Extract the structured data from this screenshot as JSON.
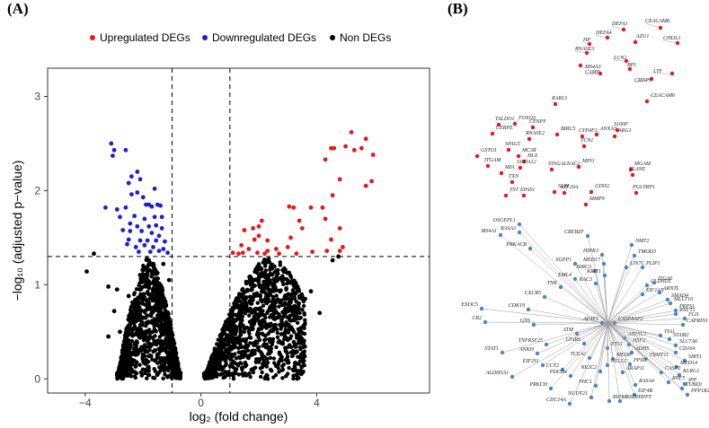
{
  "panels": {
    "a_label": "(A)",
    "b_label": "(B)"
  },
  "chart_data": {
    "type": "scatter",
    "title": "",
    "xlabel": "log₂ (fold change)",
    "ylabel": "−log₁₀ (adjusted p−value)",
    "xlim": [
      -5.3,
      7.9
    ],
    "ylim": [
      -0.15,
      3.3
    ],
    "xticks": [
      -4,
      0,
      4
    ],
    "xtick_labels": [
      "−4",
      "0",
      "4"
    ],
    "yticks": [
      0,
      1,
      2,
      3
    ],
    "ytick_labels": [
      "0",
      "1",
      "2",
      "3"
    ],
    "grid": false,
    "legend": "top",
    "thresholds": {
      "log2fc": [
        -1,
        1
      ],
      "neglog10_padj": 1.3
    },
    "colors": {
      "up": "#e31a1c",
      "down": "#1f1fd0",
      "non": "#000000"
    },
    "series": [
      {
        "name": "Upregulated DEGs",
        "color": "#e31a1c",
        "points": [
          [
            5.2,
            2.62
          ],
          [
            5.7,
            2.55
          ],
          [
            5.0,
            2.47
          ],
          [
            5.55,
            2.45
          ],
          [
            4.5,
            2.45
          ],
          [
            4.6,
            2.45
          ],
          [
            5.3,
            2.43
          ],
          [
            5.95,
            2.38
          ],
          [
            4.3,
            2.33
          ],
          [
            5.9,
            2.1
          ],
          [
            4.8,
            2.12
          ],
          [
            5.7,
            2.05
          ],
          [
            4.55,
            1.95
          ],
          [
            4.2,
            1.82
          ],
          [
            3.8,
            1.82
          ],
          [
            4.3,
            1.7
          ],
          [
            3.2,
            1.82
          ],
          [
            3.05,
            1.83
          ],
          [
            3.4,
            1.68
          ],
          [
            3.5,
            1.6
          ],
          [
            4.8,
            1.6
          ],
          [
            2.1,
            1.68
          ],
          [
            2.0,
            1.62
          ],
          [
            1.8,
            1.6
          ],
          [
            1.5,
            1.58
          ],
          [
            2.0,
            1.52
          ],
          [
            1.85,
            1.48
          ],
          [
            2.3,
            1.47
          ],
          [
            3.1,
            1.5
          ],
          [
            4.5,
            1.48
          ],
          [
            4.9,
            1.4
          ],
          [
            4.8,
            1.36
          ],
          [
            3.0,
            1.4
          ],
          [
            1.4,
            1.42
          ],
          [
            1.65,
            1.38
          ],
          [
            1.3,
            1.33
          ],
          [
            1.1,
            1.34
          ],
          [
            1.45,
            1.34
          ],
          [
            2.2,
            1.33
          ],
          [
            2.7,
            1.33
          ],
          [
            3.3,
            1.33
          ],
          [
            3.85,
            1.35
          ],
          [
            4.35,
            1.36
          ],
          [
            2.3,
            1.36
          ],
          [
            1.95,
            1.34
          ],
          [
            2.6,
            1.38
          ]
        ]
      },
      {
        "name": "Downregulated DEGs",
        "color": "#1f1fd0",
        "points": [
          [
            -3.1,
            2.5
          ],
          [
            -3.0,
            2.43
          ],
          [
            -2.6,
            2.43
          ],
          [
            -3.05,
            2.37
          ],
          [
            -2.2,
            2.2
          ],
          [
            -2.4,
            2.15
          ],
          [
            -2.1,
            2.12
          ],
          [
            -2.5,
            2.08
          ],
          [
            -1.6,
            2.02
          ],
          [
            -2.2,
            1.98
          ],
          [
            -2.4,
            1.96
          ],
          [
            -2.0,
            1.93
          ],
          [
            -1.9,
            1.85
          ],
          [
            -1.8,
            1.85
          ],
          [
            -1.5,
            1.85
          ],
          [
            -1.4,
            1.84
          ],
          [
            -1.7,
            1.83
          ],
          [
            -2.6,
            1.82
          ],
          [
            -3.3,
            1.82
          ],
          [
            -2.9,
            1.8
          ],
          [
            -2.8,
            1.72
          ],
          [
            -2.3,
            1.73
          ],
          [
            -1.95,
            1.7
          ],
          [
            -1.6,
            1.72
          ],
          [
            -1.35,
            1.72
          ],
          [
            -2.45,
            1.65
          ],
          [
            -2.2,
            1.62
          ],
          [
            -1.8,
            1.62
          ],
          [
            -1.55,
            1.63
          ],
          [
            -1.35,
            1.6
          ],
          [
            -2.7,
            1.58
          ],
          [
            -2.45,
            1.57
          ],
          [
            -2.05,
            1.57
          ],
          [
            -1.7,
            1.55
          ],
          [
            -1.45,
            1.52
          ],
          [
            -2.5,
            1.48
          ],
          [
            -2.1,
            1.47
          ],
          [
            -1.85,
            1.47
          ],
          [
            -1.55,
            1.47
          ],
          [
            -1.25,
            1.46
          ],
          [
            -2.55,
            1.43
          ],
          [
            -2.25,
            1.4
          ],
          [
            -1.95,
            1.42
          ],
          [
            -1.65,
            1.4
          ],
          [
            -1.3,
            1.38
          ],
          [
            -2.15,
            1.35
          ],
          [
            -1.75,
            1.35
          ],
          [
            -1.45,
            1.36
          ],
          [
            -1.15,
            1.34
          ]
        ]
      },
      {
        "name": "Non DEGs",
        "color": "#000000",
        "points": [
          [
            -3.95,
            1.14
          ],
          [
            -3.7,
            1.33
          ],
          [
            -3.2,
            0.98
          ],
          [
            -2.9,
            0.95
          ],
          [
            -2.5,
            0.88
          ],
          [
            -3.0,
            0.72
          ],
          [
            -2.3,
            0.68
          ],
          [
            -2.8,
            0.5
          ],
          [
            -3.2,
            0.45
          ],
          [
            -2.6,
            0.39
          ],
          [
            -2.1,
            0.3
          ],
          [
            -2.4,
            0.1
          ],
          [
            -1.8,
            1.0
          ],
          [
            -1.6,
            1.17
          ],
          [
            -1.3,
            1.22
          ],
          [
            -1.1,
            1.05
          ],
          [
            3.1,
            1.02
          ],
          [
            3.6,
            0.85
          ],
          [
            3.8,
            0.93
          ],
          [
            4.1,
            0.7
          ],
          [
            3.2,
            0.72
          ],
          [
            2.9,
            0.45
          ],
          [
            3.5,
            0.55
          ],
          [
            2.6,
            1.15
          ],
          [
            2.3,
            1.1
          ],
          [
            2.1,
            0.22
          ],
          [
            2.5,
            0.85
          ],
          [
            4.55,
            1.26
          ],
          [
            4.75,
            1.3
          ]
        ]
      }
    ],
    "non_deg_cloud": [
      {
        "x_min": -2.9,
        "x_max": -0.7,
        "y_max_at_edge": 1.3,
        "x_edge": -1.8,
        "count": 1100
      },
      {
        "x_min": 0.1,
        "x_max": 3.6,
        "y_max_at_edge": 1.3,
        "x_edge": 2.4,
        "count": 1200
      }
    ]
  },
  "network": {
    "color": "#e31a1c",
    "clusters": [
      {
        "name": "cluster-1",
        "node_color": "#e31a1c",
        "nodes": [
          [
            "DEFA1",
            694,
            33
          ],
          [
            "CEACAM8",
            735,
            31
          ],
          [
            "DEFA4",
            676,
            42
          ],
          [
            "HP",
            656,
            49
          ],
          [
            "AZU1",
            707,
            47
          ],
          [
            "CHI3L1",
            754,
            48
          ],
          [
            "RNASE3",
            653,
            59
          ],
          [
            "LCN2",
            697,
            68
          ],
          [
            "MS4A3",
            646,
            73
          ],
          [
            "CAMP",
            668,
            82
          ],
          [
            "BPI",
            701,
            77
          ],
          [
            "LTF",
            748,
            82
          ],
          [
            "CRISP3",
            725,
            88
          ]
        ],
        "label_positions": [
          [
            681,
            28
          ],
          [
            718,
            25
          ],
          [
            663,
            38
          ],
          [
            649,
            46
          ],
          [
            708,
            42
          ],
          [
            738,
            44
          ],
          [
            640,
            56
          ],
          [
            683,
            66
          ],
          [
            651,
            76
          ],
          [
            651,
            82
          ],
          [
            698,
            74
          ],
          [
            727,
            81
          ],
          [
            706,
            91
          ]
        ]
      },
      {
        "name": "cluster-2",
        "node_color": "#e31a1c",
        "nodes": [
          [
            "RAB13",
            618,
            116
          ],
          [
            "CEACAM6",
            720,
            113
          ],
          [
            "TALDO1",
            555,
            139
          ],
          [
            "FOXO3",
            573,
            138
          ],
          [
            "CENPF",
            593,
            142
          ],
          [
            "CEBPE",
            548,
            149
          ],
          [
            "RNASE2",
            589,
            155
          ],
          [
            "BIRC5",
            620,
            150
          ],
          [
            "CYP4F3",
            648,
            152
          ],
          [
            "ANXA3",
            664,
            150
          ],
          [
            "S100P",
            687,
            145
          ],
          [
            "ARG1",
            684,
            152
          ],
          [
            "SPAG5",
            566,
            167
          ],
          [
            "MC3R",
            577,
            174
          ],
          [
            "TCN1",
            650,
            163
          ],
          [
            "GSTO1",
            531,
            174
          ],
          [
            "ITGAM",
            543,
            185
          ],
          [
            "HLX",
            583,
            180
          ],
          [
            "ST6GALNAC2",
            614,
            189
          ],
          [
            "MPO",
            644,
            186
          ],
          [
            "S100A12",
            579,
            187
          ],
          [
            "MIA",
            558,
            193
          ],
          [
            "TXN",
            570,
            203
          ],
          [
            "MGAM",
            702,
            189
          ],
          [
            "ELANE",
            704,
            195
          ],
          [
            "TST",
            563,
            218
          ],
          [
            "EPAS1",
            583,
            218
          ],
          [
            "SLPI",
            617,
            214
          ],
          [
            "KIF20A",
            628,
            215
          ],
          [
            "GINS2",
            658,
            214
          ],
          [
            "PGLYRP1",
            708,
            215
          ],
          [
            "MMP9",
            652,
            228
          ]
        ]
      },
      {
        "name": "cluster-3",
        "node_color": "#4a86c8",
        "nodes": [
          [
            "OSGEPL1",
            578,
            250
          ],
          [
            "MS4A1",
            557,
            262
          ],
          [
            "RASA3",
            578,
            259
          ],
          [
            "PRKACB",
            590,
            277
          ],
          [
            "CREBZF",
            654,
            263
          ],
          [
            "NMT2",
            703,
            273
          ],
          [
            "HIPK3",
            670,
            284
          ],
          [
            "MED17",
            672,
            294
          ],
          [
            "TMOD3",
            706,
            285
          ],
          [
            "SGPP1",
            640,
            294
          ],
          [
            "BIRC3",
            662,
            302
          ],
          [
            "KRIT1",
            673,
            307
          ],
          [
            "LIN7C",
            697,
            298
          ],
          [
            "PLIP1",
            715,
            298
          ],
          [
            "EML4",
            640,
            311
          ],
          [
            "RAC3",
            663,
            316
          ],
          [
            "CLDND1",
            720,
            318
          ],
          [
            "ITGA6",
            728,
            315
          ],
          [
            "TNK",
            624,
            320
          ],
          [
            "CXCR5",
            606,
            331
          ],
          [
            "EIF1AX",
            715,
            328
          ],
          [
            "ARNTL",
            734,
            326
          ],
          [
            "SMAD4",
            743,
            334
          ],
          [
            "CDK19",
            588,
            345
          ],
          [
            "EXOC5",
            536,
            344
          ],
          [
            "MLLT10",
            746,
            338
          ],
          [
            "PRPS1",
            752,
            346
          ],
          [
            "CR2",
            540,
            359
          ],
          [
            "GNS",
            594,
            362
          ],
          [
            "AP4E1",
            670,
            360
          ],
          [
            "CASP8AP2",
            684,
            360
          ],
          [
            "FLI1",
            762,
            355
          ],
          [
            "RNFT1",
            752,
            350
          ],
          [
            "CAPRIN1",
            760,
            362
          ],
          [
            "ATM",
            642,
            372
          ],
          [
            "TIA1",
            735,
            374
          ],
          [
            "STAM2",
            745,
            378
          ],
          [
            "ATP5C1",
            695,
            377
          ],
          [
            "LPAR6",
            650,
            383
          ],
          [
            "SLC7A6",
            752,
            385
          ],
          [
            "CD164",
            752,
            393
          ],
          [
            "TNFRSF25",
            608,
            384
          ],
          [
            "HSF2",
            700,
            384
          ],
          [
            "ETS1",
            676,
            388
          ],
          [
            "ADH5",
            703,
            393
          ],
          [
            "STAT1",
            559,
            393
          ],
          [
            "ANKH",
            598,
            394
          ],
          [
            "TCEA2",
            656,
            399
          ],
          [
            "MED6",
            682,
            400
          ],
          [
            "TRMT11",
            719,
            400
          ],
          [
            "SIRT1",
            762,
            402
          ],
          [
            "EIF2S1",
            604,
            407
          ],
          [
            "NELL2",
            676,
            407
          ],
          [
            "PPID",
            701,
            406
          ],
          [
            "MED14",
            753,
            409
          ],
          [
            "CCT2",
            626,
            412
          ],
          [
            "NR2C2",
            668,
            414
          ],
          [
            "ARAP11",
            693,
            415
          ],
          [
            "CASP2",
            736,
            415
          ],
          [
            "KLRG1",
            756,
            418
          ],
          [
            "ALDH5A1",
            570,
            420
          ],
          [
            "PDCD4",
            635,
            419
          ],
          [
            "RNF5",
            744,
            426
          ],
          [
            "IPP",
            762,
            428
          ],
          [
            "PHC1",
            663,
            430
          ],
          [
            "RASA4",
            707,
            429
          ],
          [
            "TUBD1",
            759,
            433
          ],
          [
            "PRKCH",
            613,
            433
          ],
          [
            "EIF4B",
            706,
            440
          ],
          [
            "PPP1R2",
            765,
            440
          ],
          [
            "NUDT21",
            658,
            443
          ],
          [
            "RIPK1",
            678,
            447
          ],
          [
            "A6SDHIPPT",
            690,
            447
          ],
          [
            "CDC14A",
            634,
            450
          ]
        ],
        "hub": [
          676,
          360
        ]
      }
    ]
  }
}
